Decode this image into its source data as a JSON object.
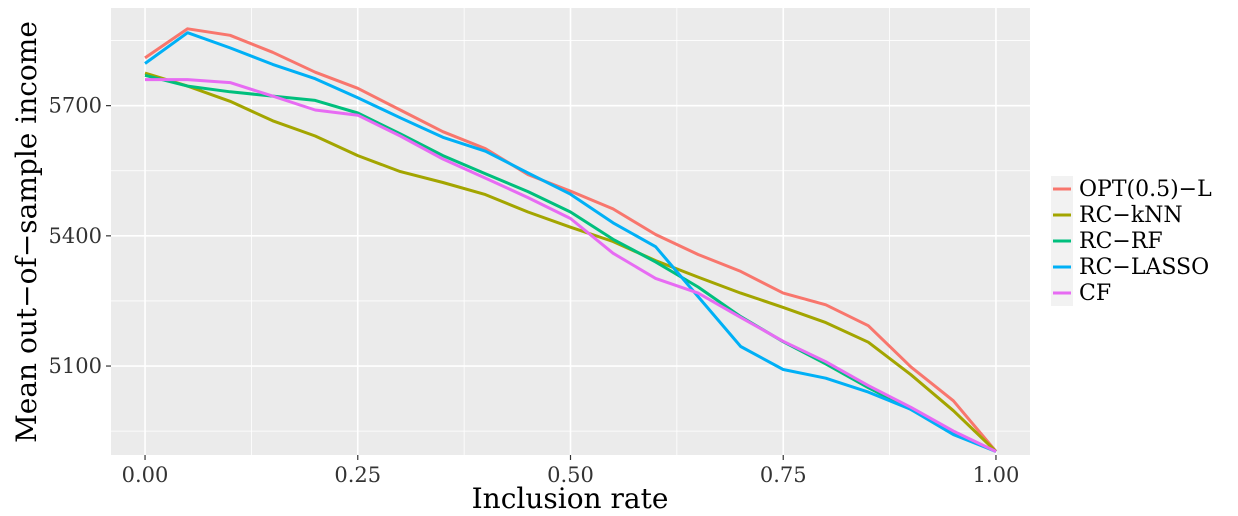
{
  "chart_data": {
    "type": "line",
    "title": "",
    "xlabel": "Inclusion rate",
    "ylabel": "Mean out−of−sample income",
    "xlim": [
      -0.04,
      1.04
    ],
    "ylim": [
      4895,
      5925
    ],
    "x_ticks": [
      0.0,
      0.25,
      0.5,
      0.75,
      1.0
    ],
    "x_tick_labels": [
      "0.00",
      "0.25",
      "0.50",
      "0.75",
      "1.00"
    ],
    "y_ticks": [
      5100,
      5400,
      5700
    ],
    "y_tick_labels": [
      "5100",
      "5400",
      "5700"
    ],
    "grid": true,
    "legend_position": "right",
    "x": [
      0.0,
      0.05,
      0.1,
      0.15,
      0.2,
      0.25,
      0.3,
      0.35,
      0.4,
      0.45,
      0.5,
      0.55,
      0.6,
      0.65,
      0.7,
      0.75,
      0.8,
      0.85,
      0.9,
      0.95,
      1.0
    ],
    "series": [
      {
        "name": "OPT(0.5)−L",
        "color": "#F8766D",
        "values": [
          5810,
          5877,
          5862,
          5823,
          5777,
          5740,
          5690,
          5640,
          5601,
          5541,
          5503,
          5462,
          5403,
          5357,
          5318,
          5268,
          5241,
          5193,
          5098,
          5020,
          4903
        ]
      },
      {
        "name": "RC−kNN",
        "color": "#A3A500",
        "values": [
          5775,
          5745,
          5710,
          5665,
          5630,
          5585,
          5548,
          5523,
          5495,
          5455,
          5420,
          5387,
          5343,
          5305,
          5268,
          5235,
          5200,
          5155,
          5080,
          4997,
          4903
        ]
      },
      {
        "name": "RC−RF",
        "color": "#00BF7D",
        "values": [
          5770,
          5745,
          5732,
          5722,
          5712,
          5683,
          5635,
          5585,
          5543,
          5502,
          5455,
          5392,
          5340,
          5282,
          5214,
          5156,
          5105,
          5050,
          5000,
          4947,
          4903
        ]
      },
      {
        "name": "RC−LASSO",
        "color": "#00B0F6",
        "values": [
          5797,
          5868,
          5833,
          5795,
          5762,
          5718,
          5672,
          5627,
          5595,
          5545,
          5496,
          5430,
          5375,
          5260,
          5145,
          5092,
          5072,
          5040,
          5000,
          4942,
          4903
        ]
      },
      {
        "name": "CF",
        "color": "#E76BF3",
        "values": [
          5760,
          5760,
          5753,
          5722,
          5690,
          5678,
          5630,
          5577,
          5533,
          5488,
          5440,
          5360,
          5302,
          5268,
          5212,
          5157,
          5110,
          5055,
          5005,
          4950,
          4903
        ]
      }
    ]
  }
}
